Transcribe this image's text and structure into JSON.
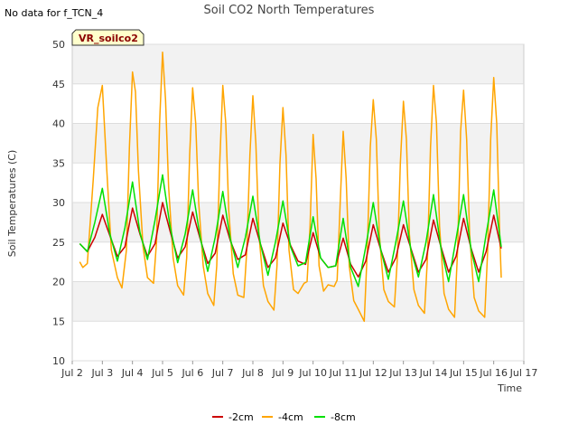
{
  "header": {
    "status_text": "No data for f_TCN_4"
  },
  "chart_data": {
    "type": "line",
    "title": "Soil CO2 North Temperatures",
    "xlabel": "Time",
    "ylabel": "Soil Temperatures (C)",
    "badge": "VR_soilco2",
    "x_tick_labels": [
      "Jul 2",
      "Jul 3",
      "Jul 4",
      "Jul 5",
      "Jul 6",
      "Jul 7",
      "Jul 8",
      "Jul 9",
      "Jul 10",
      "Jul 11",
      "Jul 12",
      "Jul 13",
      "Jul 14",
      "Jul 15",
      "Jul 16",
      "Jul 17"
    ],
    "xlim": [
      2,
      17
    ],
    "ylim": [
      10,
      50
    ],
    "y_ticks": [
      10,
      15,
      20,
      25,
      30,
      35,
      40,
      45,
      50
    ],
    "grid": "horizontal bands",
    "legend_position": "bottom-center",
    "series": [
      {
        "name": "-2cm",
        "color": "#cc0000",
        "x": [
          2.25,
          2.5,
          2.75,
          3.0,
          3.25,
          3.5,
          3.75,
          4.0,
          4.25,
          4.5,
          4.75,
          5.0,
          5.25,
          5.5,
          5.75,
          6.0,
          6.25,
          6.5,
          6.75,
          7.0,
          7.25,
          7.5,
          7.75,
          8.0,
          8.25,
          8.5,
          8.75,
          9.0,
          9.25,
          9.5,
          9.75,
          10.0,
          10.25,
          10.5,
          10.75,
          11.0,
          11.25,
          11.5,
          11.75,
          12.0,
          12.25,
          12.5,
          12.75,
          13.0,
          13.25,
          13.5,
          13.75,
          14.0,
          14.25,
          14.5,
          14.75,
          15.0,
          15.25,
          15.5,
          15.75,
          16.0,
          16.25
        ],
        "values": [
          24.8,
          23.8,
          25.6,
          28.5,
          25.8,
          23.2,
          24.4,
          29.3,
          26.0,
          23.2,
          24.8,
          30.0,
          26.4,
          23.0,
          24.4,
          28.8,
          25.4,
          22.3,
          23.6,
          28.4,
          25.2,
          22.8,
          23.4,
          28.0,
          24.8,
          21.8,
          23.0,
          27.4,
          24.6,
          22.6,
          22.2,
          26.2,
          23.0,
          21.8,
          22.0,
          25.5,
          22.2,
          20.6,
          22.6,
          27.2,
          24.0,
          21.2,
          23.0,
          27.2,
          24.2,
          21.2,
          22.8,
          27.8,
          24.4,
          21.2,
          23.2,
          28.0,
          24.2,
          21.2,
          23.8,
          28.4,
          24.2
        ]
      },
      {
        "name": "-4cm",
        "color": "#ffa500",
        "x": [
          2.25,
          2.35,
          2.5,
          2.7,
          2.85,
          3.0,
          3.15,
          3.3,
          3.5,
          3.65,
          3.8,
          3.9,
          4.0,
          4.1,
          4.2,
          4.35,
          4.5,
          4.7,
          4.8,
          4.9,
          5.0,
          5.1,
          5.2,
          5.35,
          5.5,
          5.7,
          5.8,
          5.9,
          6.0,
          6.1,
          6.2,
          6.35,
          6.5,
          6.7,
          6.8,
          6.9,
          7.0,
          7.1,
          7.2,
          7.35,
          7.5,
          7.7,
          7.8,
          7.9,
          8.0,
          8.1,
          8.2,
          8.35,
          8.5,
          8.7,
          8.8,
          8.9,
          9.0,
          9.1,
          9.2,
          9.35,
          9.5,
          9.7,
          9.8,
          9.9,
          10.0,
          10.1,
          10.2,
          10.35,
          10.5,
          10.7,
          10.8,
          10.9,
          11.0,
          11.1,
          11.2,
          11.35,
          11.5,
          11.7,
          11.8,
          11.9,
          12.0,
          12.1,
          12.2,
          12.35,
          12.5,
          12.7,
          12.8,
          12.9,
          13.0,
          13.1,
          13.2,
          13.35,
          13.5,
          13.7,
          13.8,
          13.9,
          14.0,
          14.1,
          14.2,
          14.35,
          14.5,
          14.7,
          14.8,
          14.9,
          15.0,
          15.1,
          15.2,
          15.35,
          15.5,
          15.7,
          15.8,
          15.9,
          16.0,
          16.1,
          16.2,
          16.25
        ],
        "values": [
          22.5,
          21.8,
          22.3,
          33.0,
          42.0,
          44.8,
          34.0,
          24.0,
          20.5,
          19.2,
          24.0,
          37.0,
          46.5,
          44.0,
          34.0,
          24.5,
          20.5,
          19.8,
          25.0,
          40.0,
          49.0,
          43.0,
          32.0,
          23.0,
          19.5,
          18.3,
          23.0,
          36.0,
          44.5,
          40.0,
          30.0,
          22.0,
          18.5,
          17.0,
          22.0,
          35.0,
          44.8,
          40.0,
          29.0,
          21.0,
          18.3,
          18.0,
          24.0,
          36.0,
          43.5,
          37.5,
          26.0,
          19.5,
          17.5,
          16.4,
          22.0,
          35.0,
          42.0,
          36.0,
          24.0,
          19.0,
          18.5,
          19.8,
          20.0,
          27.0,
          38.6,
          33.0,
          22.0,
          18.8,
          19.6,
          19.4,
          20.2,
          30.0,
          39.0,
          33.0,
          22.0,
          17.6,
          16.5,
          15.0,
          24.0,
          37.0,
          43.0,
          38.0,
          26.0,
          19.0,
          17.5,
          16.8,
          23.0,
          35.0,
          42.8,
          38.0,
          26.0,
          19.0,
          17.0,
          16.0,
          23.0,
          37.0,
          44.8,
          40.0,
          27.0,
          18.5,
          16.5,
          15.5,
          24.0,
          39.0,
          44.2,
          38.0,
          26.0,
          18.0,
          16.3,
          15.5,
          24.0,
          38.0,
          45.8,
          40.0,
          26.0,
          20.5
        ]
      },
      {
        "name": "-8cm",
        "color": "#00e000",
        "x": [
          2.25,
          2.5,
          2.75,
          3.0,
          3.25,
          3.5,
          3.75,
          4.0,
          4.25,
          4.5,
          4.75,
          5.0,
          5.25,
          5.5,
          5.75,
          6.0,
          6.25,
          6.5,
          6.75,
          7.0,
          7.25,
          7.5,
          7.75,
          8.0,
          8.25,
          8.5,
          8.75,
          9.0,
          9.25,
          9.5,
          9.75,
          10.0,
          10.25,
          10.5,
          10.75,
          11.0,
          11.25,
          11.5,
          11.75,
          12.0,
          12.25,
          12.5,
          12.75,
          13.0,
          13.25,
          13.5,
          13.75,
          14.0,
          14.25,
          14.5,
          14.75,
          15.0,
          15.25,
          15.5,
          15.75,
          16.0,
          16.25
        ],
        "values": [
          24.8,
          23.8,
          27.5,
          31.8,
          26.0,
          22.6,
          26.8,
          32.6,
          26.2,
          22.8,
          27.8,
          33.5,
          27.0,
          22.4,
          26.0,
          31.6,
          25.6,
          21.3,
          25.6,
          31.4,
          25.4,
          21.8,
          25.6,
          30.8,
          24.8,
          20.8,
          25.0,
          30.2,
          24.4,
          22.0,
          22.4,
          28.2,
          23.0,
          21.8,
          22.0,
          28.0,
          21.8,
          19.4,
          24.4,
          30.0,
          24.0,
          20.3,
          25.0,
          30.2,
          24.0,
          20.6,
          25.0,
          31.0,
          24.2,
          20.0,
          25.4,
          31.0,
          24.0,
          20.0,
          26.0,
          31.6,
          24.4
        ]
      }
    ]
  }
}
